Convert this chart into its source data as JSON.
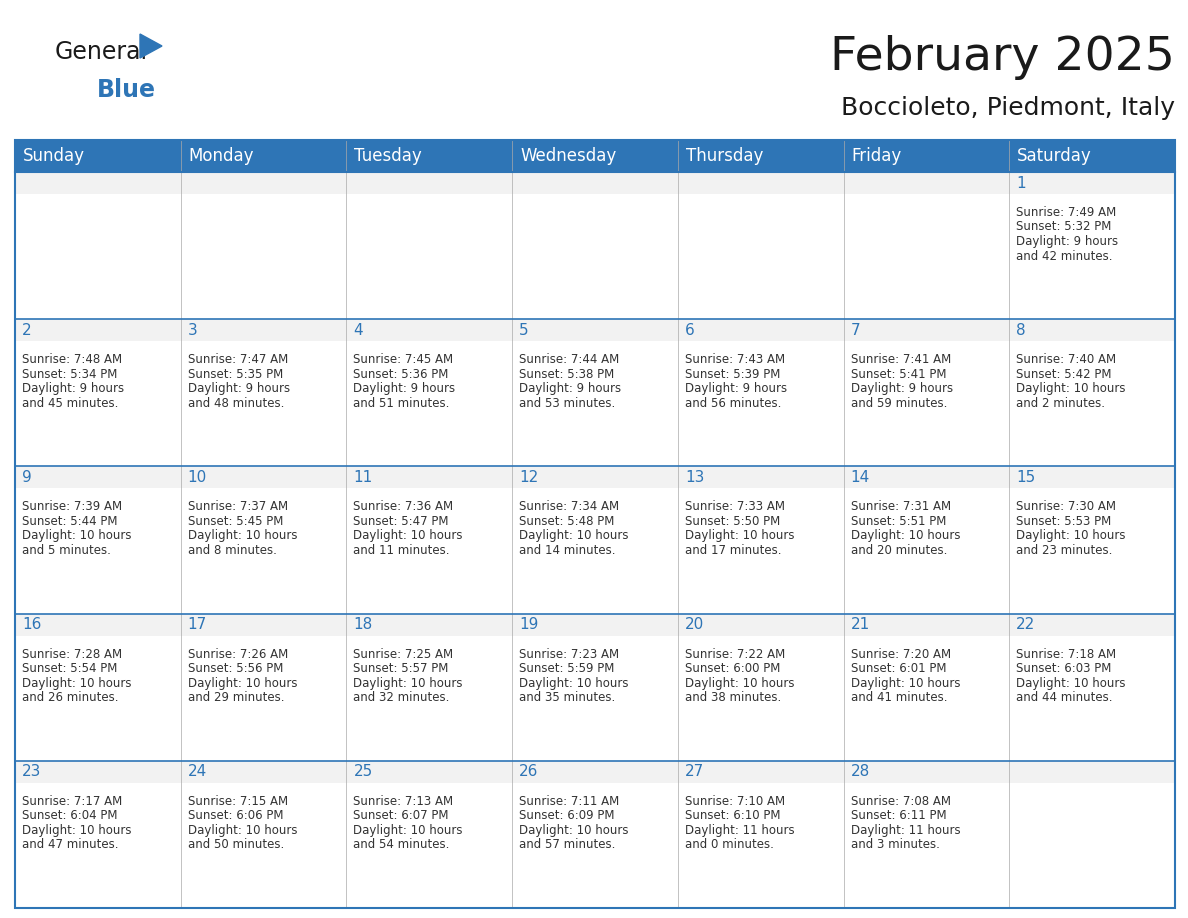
{
  "title": "February 2025",
  "subtitle": "Boccioleto, Piedmont, Italy",
  "header_color": "#2E75B6",
  "header_text_color": "#FFFFFF",
  "day_num_bg": "#F2F2F2",
  "cell_bg_color": "#FFFFFF",
  "border_color": "#2E75B6",
  "text_color": "#333333",
  "day_num_color": "#2E75B6",
  "day_names": [
    "Sunday",
    "Monday",
    "Tuesday",
    "Wednesday",
    "Thursday",
    "Friday",
    "Saturday"
  ],
  "title_fontsize": 34,
  "subtitle_fontsize": 18,
  "header_fontsize": 12,
  "day_num_fontsize": 11,
  "cell_fontsize": 8.5,
  "days": [
    {
      "day": 1,
      "col": 6,
      "row": 0,
      "sunrise": "7:49 AM",
      "sunset": "5:32 PM",
      "daylight_h": "9",
      "daylight_m": "42"
    },
    {
      "day": 2,
      "col": 0,
      "row": 1,
      "sunrise": "7:48 AM",
      "sunset": "5:34 PM",
      "daylight_h": "9",
      "daylight_m": "45"
    },
    {
      "day": 3,
      "col": 1,
      "row": 1,
      "sunrise": "7:47 AM",
      "sunset": "5:35 PM",
      "daylight_h": "9",
      "daylight_m": "48"
    },
    {
      "day": 4,
      "col": 2,
      "row": 1,
      "sunrise": "7:45 AM",
      "sunset": "5:36 PM",
      "daylight_h": "9",
      "daylight_m": "51"
    },
    {
      "day": 5,
      "col": 3,
      "row": 1,
      "sunrise": "7:44 AM",
      "sunset": "5:38 PM",
      "daylight_h": "9",
      "daylight_m": "53"
    },
    {
      "day": 6,
      "col": 4,
      "row": 1,
      "sunrise": "7:43 AM",
      "sunset": "5:39 PM",
      "daylight_h": "9",
      "daylight_m": "56"
    },
    {
      "day": 7,
      "col": 5,
      "row": 1,
      "sunrise": "7:41 AM",
      "sunset": "5:41 PM",
      "daylight_h": "9",
      "daylight_m": "59"
    },
    {
      "day": 8,
      "col": 6,
      "row": 1,
      "sunrise": "7:40 AM",
      "sunset": "5:42 PM",
      "daylight_h": "10",
      "daylight_m": "2"
    },
    {
      "day": 9,
      "col": 0,
      "row": 2,
      "sunrise": "7:39 AM",
      "sunset": "5:44 PM",
      "daylight_h": "10",
      "daylight_m": "5"
    },
    {
      "day": 10,
      "col": 1,
      "row": 2,
      "sunrise": "7:37 AM",
      "sunset": "5:45 PM",
      "daylight_h": "10",
      "daylight_m": "8"
    },
    {
      "day": 11,
      "col": 2,
      "row": 2,
      "sunrise": "7:36 AM",
      "sunset": "5:47 PM",
      "daylight_h": "10",
      "daylight_m": "11"
    },
    {
      "day": 12,
      "col": 3,
      "row": 2,
      "sunrise": "7:34 AM",
      "sunset": "5:48 PM",
      "daylight_h": "10",
      "daylight_m": "14"
    },
    {
      "day": 13,
      "col": 4,
      "row": 2,
      "sunrise": "7:33 AM",
      "sunset": "5:50 PM",
      "daylight_h": "10",
      "daylight_m": "17"
    },
    {
      "day": 14,
      "col": 5,
      "row": 2,
      "sunrise": "7:31 AM",
      "sunset": "5:51 PM",
      "daylight_h": "10",
      "daylight_m": "20"
    },
    {
      "day": 15,
      "col": 6,
      "row": 2,
      "sunrise": "7:30 AM",
      "sunset": "5:53 PM",
      "daylight_h": "10",
      "daylight_m": "23"
    },
    {
      "day": 16,
      "col": 0,
      "row": 3,
      "sunrise": "7:28 AM",
      "sunset": "5:54 PM",
      "daylight_h": "10",
      "daylight_m": "26"
    },
    {
      "day": 17,
      "col": 1,
      "row": 3,
      "sunrise": "7:26 AM",
      "sunset": "5:56 PM",
      "daylight_h": "10",
      "daylight_m": "29"
    },
    {
      "day": 18,
      "col": 2,
      "row": 3,
      "sunrise": "7:25 AM",
      "sunset": "5:57 PM",
      "daylight_h": "10",
      "daylight_m": "32"
    },
    {
      "day": 19,
      "col": 3,
      "row": 3,
      "sunrise": "7:23 AM",
      "sunset": "5:59 PM",
      "daylight_h": "10",
      "daylight_m": "35"
    },
    {
      "day": 20,
      "col": 4,
      "row": 3,
      "sunrise": "7:22 AM",
      "sunset": "6:00 PM",
      "daylight_h": "10",
      "daylight_m": "38"
    },
    {
      "day": 21,
      "col": 5,
      "row": 3,
      "sunrise": "7:20 AM",
      "sunset": "6:01 PM",
      "daylight_h": "10",
      "daylight_m": "41"
    },
    {
      "day": 22,
      "col": 6,
      "row": 3,
      "sunrise": "7:18 AM",
      "sunset": "6:03 PM",
      "daylight_h": "10",
      "daylight_m": "44"
    },
    {
      "day": 23,
      "col": 0,
      "row": 4,
      "sunrise": "7:17 AM",
      "sunset": "6:04 PM",
      "daylight_h": "10",
      "daylight_m": "47"
    },
    {
      "day": 24,
      "col": 1,
      "row": 4,
      "sunrise": "7:15 AM",
      "sunset": "6:06 PM",
      "daylight_h": "10",
      "daylight_m": "50"
    },
    {
      "day": 25,
      "col": 2,
      "row": 4,
      "sunrise": "7:13 AM",
      "sunset": "6:07 PM",
      "daylight_h": "10",
      "daylight_m": "54"
    },
    {
      "day": 26,
      "col": 3,
      "row": 4,
      "sunrise": "7:11 AM",
      "sunset": "6:09 PM",
      "daylight_h": "10",
      "daylight_m": "57"
    },
    {
      "day": 27,
      "col": 4,
      "row": 4,
      "sunrise": "7:10 AM",
      "sunset": "6:10 PM",
      "daylight_h": "11",
      "daylight_m": "0"
    },
    {
      "day": 28,
      "col": 5,
      "row": 4,
      "sunrise": "7:08 AM",
      "sunset": "6:11 PM",
      "daylight_h": "11",
      "daylight_m": "3"
    }
  ]
}
